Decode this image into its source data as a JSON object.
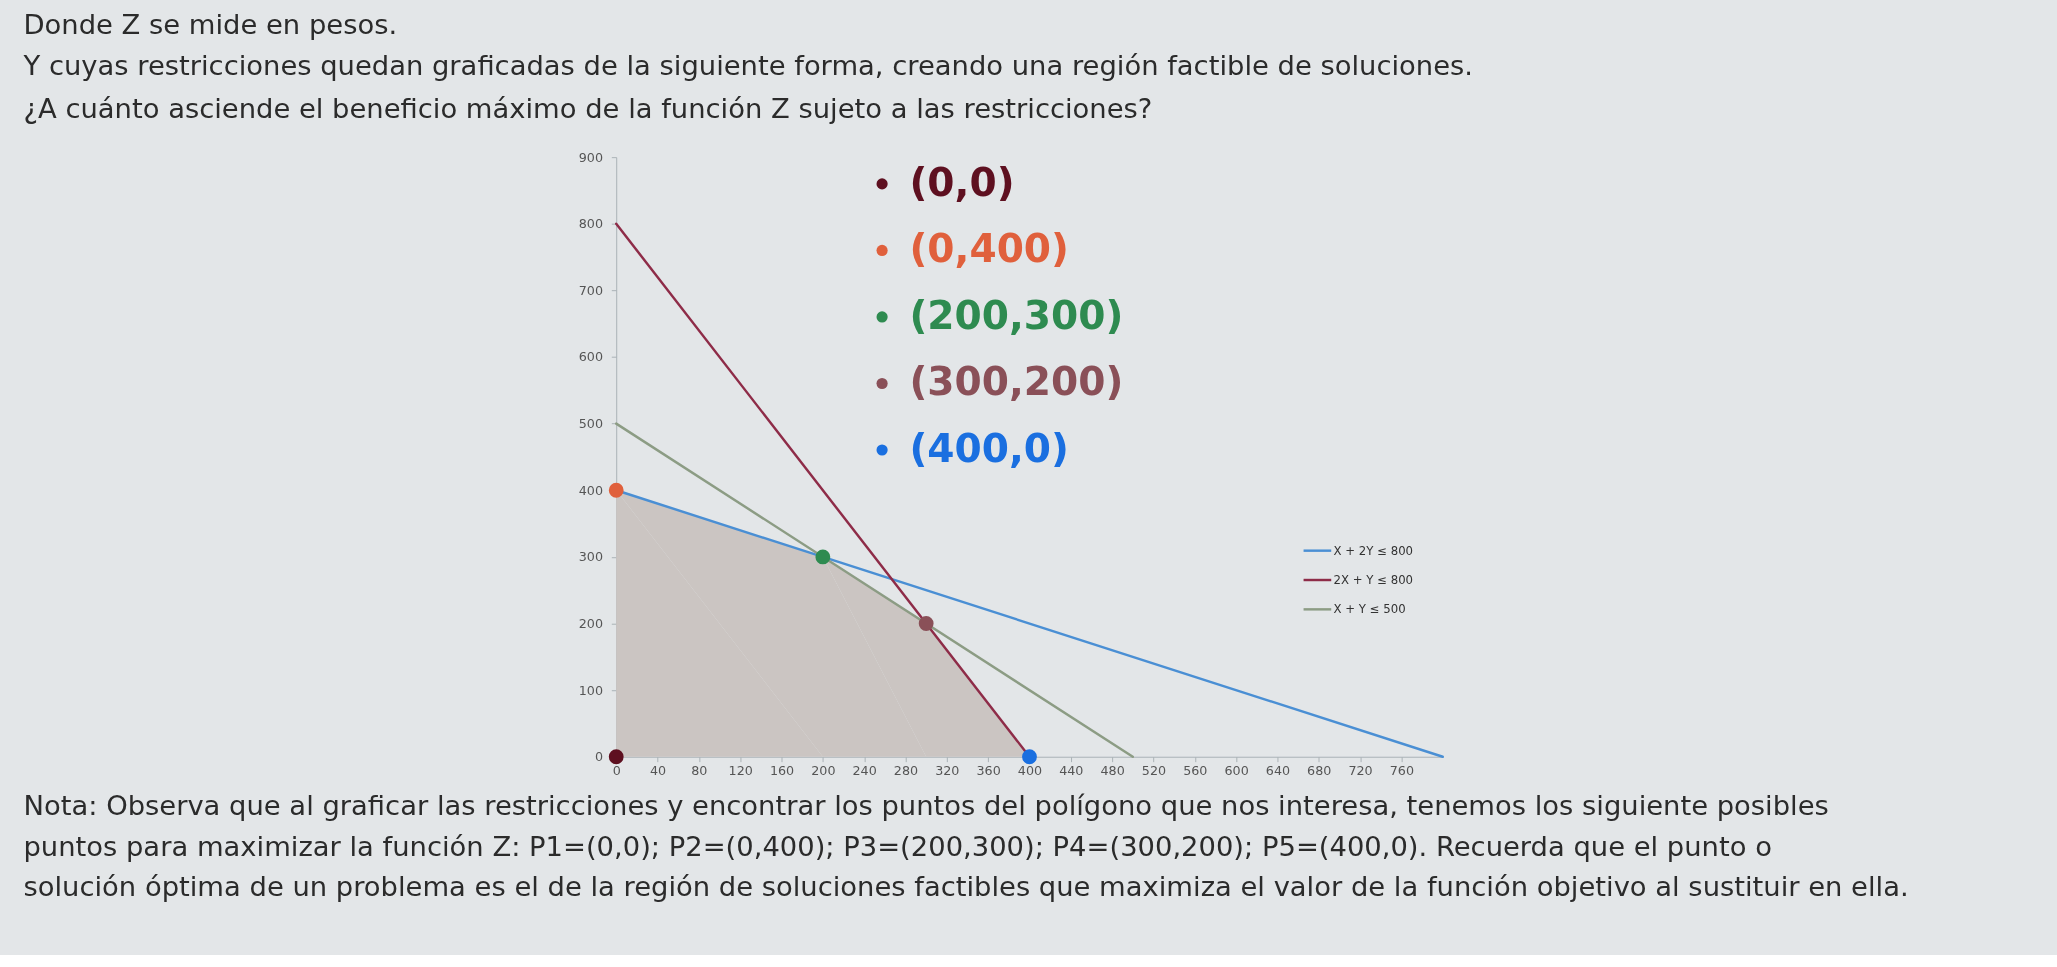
{
  "chart_data": {
    "type": "line",
    "title": "Donde Z se mide en pesos.",
    "subtitle": "Y cuyas restricciones quedan graficadas de la siguiente forma, creando una región factible de soluciones.\n¿A cuánto asciende el beneficio máximo de la función Z sujeto a las restricciones?",
    "annotations": [
      "Nota: Observa que al graficar las restricciones y encontrar los puntos del polígono que nos interesa, tenemos los siguiente posibles\npuntos para maximizar la función Z: P1=(0,0); P2=(0,400); P3=(200,300); P4=(300,200); P5=(400,0). Recuerda que el punto o\nsolución óptima de un problema es el de la región de soluciones factibles que maximiza el valor de la función objetivo al sustituir en ella."
    ],
    "xlim": [
      0,
      800
    ],
    "ylim": [
      0,
      900
    ],
    "xticks": [
      0,
      40,
      80,
      120,
      160,
      200,
      240,
      280,
      320,
      360,
      400,
      440,
      480,
      520,
      560,
      600,
      640,
      680,
      720,
      760
    ],
    "yticks": [
      0,
      100,
      200,
      300,
      400,
      500,
      600,
      700,
      800,
      900
    ],
    "series": [
      {
        "type": "area",
        "color": "#cbc5c2",
        "x": [
          0,
          200,
          300,
          400
        ],
        "values": [
          400,
          300,
          200,
          0
        ]
      },
      {
        "name": "X + 2Y ≤ 800",
        "color": "#4a8fd4",
        "x": [
          0,
          800
        ],
        "values": [
          400,
          0
        ]
      },
      {
        "name": "2X + Y ≤ 800",
        "color": "#8e2c48",
        "x": [
          0,
          400
        ],
        "values": [
          800,
          0
        ]
      },
      {
        "name": "X + Y ≤ 500",
        "color": "#8c9c84",
        "x": [
          0,
          500
        ],
        "values": [
          500,
          0
        ]
      },
      {
        "type": "scatter",
        "marker": "circle",
        "name": "(0,0)",
        "color": "#5e1020",
        "x": [
          0
        ],
        "values": [
          0
        ]
      },
      {
        "type": "scatter",
        "marker": "circle",
        "name": "(0,400)",
        "color": "#e0603c",
        "x": [
          0
        ],
        "values": [
          400
        ]
      },
      {
        "type": "scatter",
        "marker": "circle",
        "name": "(200,300)",
        "color": "#2e8b50",
        "x": [
          200
        ],
        "values": [
          300
        ]
      },
      {
        "type": "scatter",
        "marker": "circle",
        "name": "(300,200)",
        "color": "#8a5058",
        "x": [
          300
        ],
        "values": [
          200
        ]
      },
      {
        "type": "scatter",
        "marker": "circle",
        "name": "(400,0)",
        "color": "#1a6fe0",
        "x": [
          400
        ],
        "values": [
          0
        ]
      }
    ],
    "line_style": "solid",
    "legend": "right"
  }
}
